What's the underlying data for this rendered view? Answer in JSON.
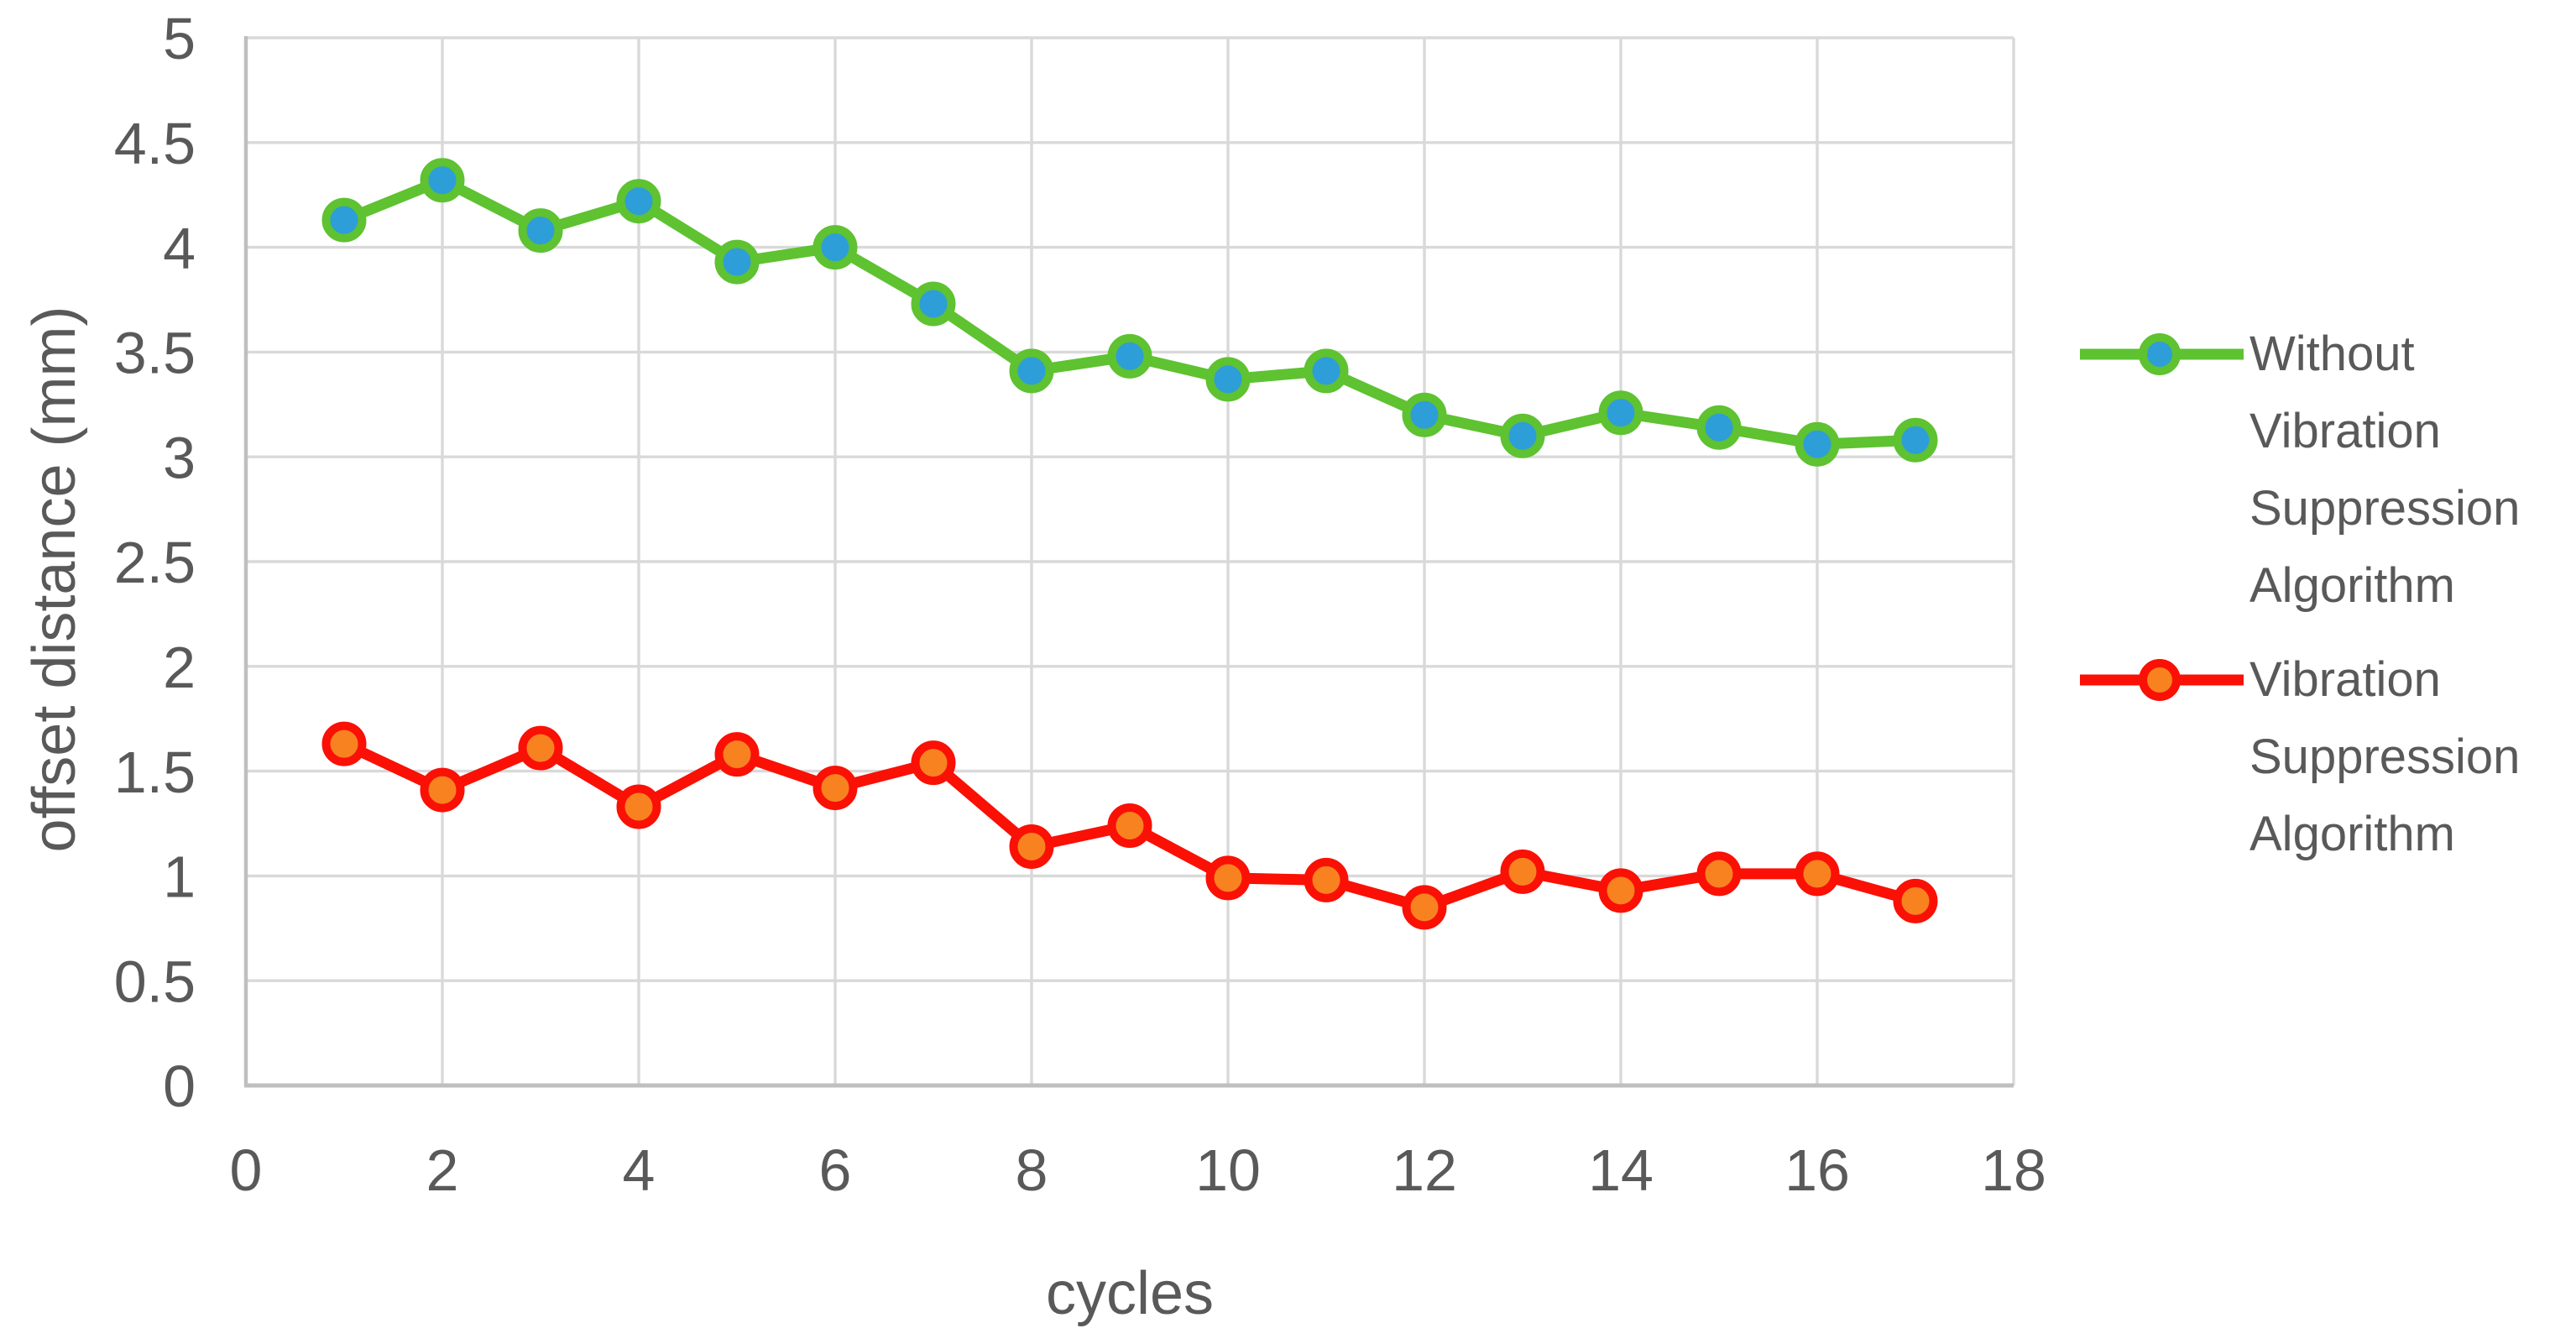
{
  "chart_data": {
    "type": "line",
    "title": "",
    "xlabel": "cycles",
    "ylabel": "offset distance (mm)",
    "xlim": [
      0,
      18
    ],
    "ylim": [
      0,
      5
    ],
    "x_tick_step": 2,
    "y_tick_step": 0.5,
    "grid": true,
    "legend_position": "right",
    "x": [
      1,
      2,
      3,
      4,
      5,
      6,
      7,
      8,
      9,
      10,
      11,
      12,
      13,
      14,
      15,
      16,
      17
    ],
    "series": [
      {
        "name": "Without Vibration Suppression Algorithm",
        "line_color": "#5EC231",
        "marker_color": "#2D9ED8",
        "values": [
          4.13,
          4.32,
          4.08,
          4.22,
          3.93,
          4.0,
          3.73,
          3.41,
          3.48,
          3.37,
          3.41,
          3.2,
          3.1,
          3.21,
          3.14,
          3.06,
          3.08
        ]
      },
      {
        "name": "Vibration Suppression Algorithm",
        "line_color": "#FA1005",
        "marker_color": "#F88220",
        "values": [
          1.63,
          1.41,
          1.61,
          1.33,
          1.58,
          1.42,
          1.54,
          1.14,
          1.24,
          0.99,
          0.98,
          0.85,
          1.02,
          0.93,
          1.01,
          1.01,
          0.88
        ]
      }
    ]
  },
  "axes": {
    "y_tick_labels": [
      "5",
      "4.5",
      "4",
      "3.5",
      "3",
      "2.5",
      "2",
      "1.5",
      "1",
      "0.5",
      "0"
    ],
    "x_tick_labels": [
      "0",
      "2",
      "4",
      "6",
      "8",
      "10",
      "12",
      "14",
      "16",
      "18"
    ]
  },
  "colors": {
    "background": "#FFFFFF",
    "text": "#595959",
    "gridline": "#D9D9D9",
    "axis_line": "#BFBFBF"
  }
}
